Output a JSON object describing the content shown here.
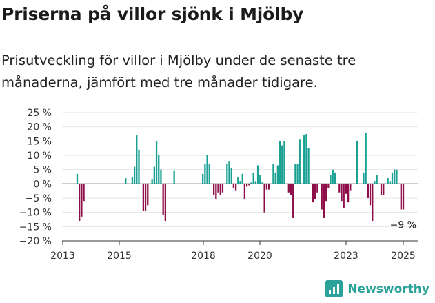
{
  "title": "Priserna på villor sjönk i Mjölby",
  "subtitle": "Prisutveckling för villor i Mjölby under de senaste tre månaderna, jämfört med tre månader tidigare.",
  "brand": {
    "name": "Newsworthy",
    "icon": "newsworthy-logo-icon",
    "color": "#2aa29a"
  },
  "chart_data": {
    "type": "bar",
    "title": "",
    "xlabel": "",
    "ylabel": "",
    "ylim": [
      -20,
      25
    ],
    "yticks": [
      25,
      20,
      15,
      10,
      5,
      0,
      -5,
      -10,
      -15,
      -20
    ],
    "ytick_labels": [
      "25 %",
      "20 %",
      "15 %",
      "10 %",
      "5 %",
      "0 %",
      "−5 %",
      "−10 %",
      "−15 %",
      "−20 %"
    ],
    "xticks": [
      "2013",
      "2015",
      "2018",
      "2020",
      "2023",
      "2025"
    ],
    "grid": true,
    "positive_color": "#1aa193",
    "negative_color": "#8e0f4a",
    "annotation": {
      "label": "−9 %",
      "value": -9
    },
    "series": [
      {
        "values": [
          3.5,
          -13,
          -11.5,
          -6,
          0,
          0,
          0,
          0,
          0,
          0,
          0,
          0,
          0,
          0,
          0,
          0,
          0,
          0,
          0,
          0,
          0,
          0,
          2,
          0,
          0,
          2.5,
          6,
          17,
          12,
          0,
          -9.5,
          -9.5,
          -7.5,
          0,
          1.5,
          6,
          15,
          10,
          5,
          -11,
          -13,
          0,
          0,
          0,
          4.5,
          0,
          0,
          0,
          0,
          0,
          0,
          0,
          0,
          0,
          0,
          0,
          0,
          3.5,
          7,
          10,
          7,
          0,
          -4,
          -5.5,
          -3,
          -4,
          -3,
          0,
          7,
          8,
          5.5,
          -1.5,
          -2.5,
          2.5,
          1,
          3.5,
          -5.5,
          -1,
          -0.5,
          0.5,
          4,
          1,
          6.5,
          3,
          0.5,
          -10,
          -2,
          -2,
          0,
          7,
          4,
          6.5,
          15,
          13.5,
          15,
          0,
          -3,
          -4,
          -12,
          7,
          7,
          15.5,
          0,
          17,
          17.5,
          12.5,
          0,
          -6.5,
          -5.5,
          -3,
          0,
          -9,
          -12,
          -6,
          -1.5,
          3,
          5,
          4,
          0,
          -3,
          -6,
          -8.5,
          -3.5,
          -6.5,
          -2.5,
          0,
          0,
          15,
          0,
          0,
          4,
          18,
          -5,
          -7.5,
          -13,
          1,
          3,
          0,
          -4,
          -4,
          0,
          2,
          1,
          4,
          5,
          5,
          0,
          -9,
          -9
        ]
      }
    ]
  }
}
